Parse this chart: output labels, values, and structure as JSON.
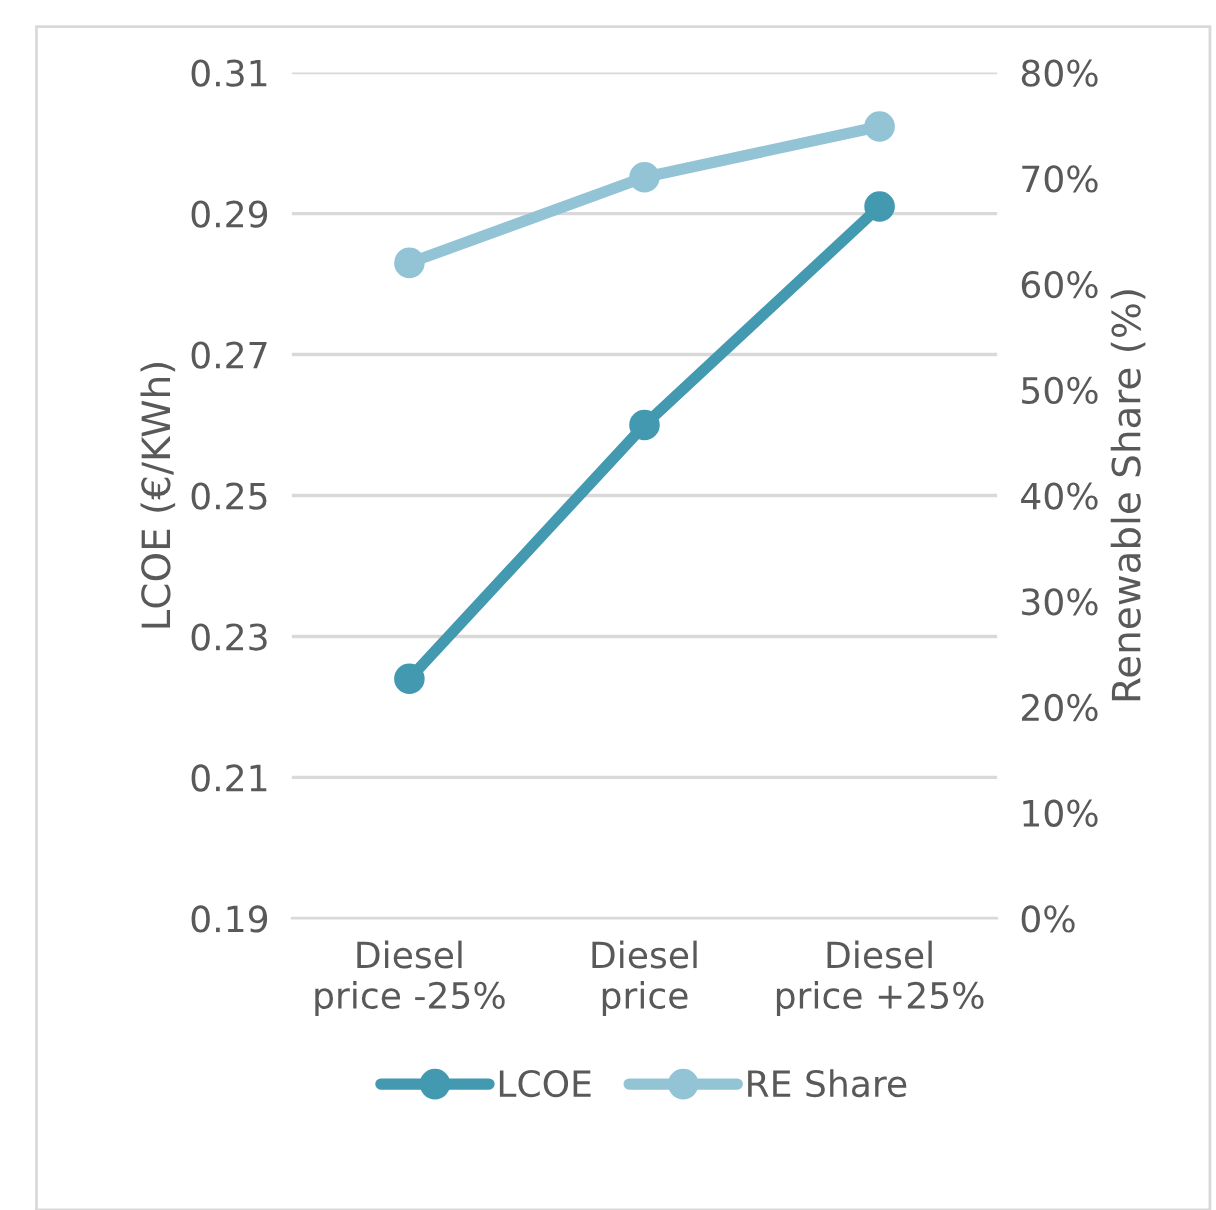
{
  "chart_data": {
    "type": "line",
    "categories": [
      "Diesel\nprice -25%",
      "Diesel\nprice",
      "Diesel\nprice +25%"
    ],
    "series": [
      {
        "name": "LCOE",
        "color": "#4299b0",
        "values": [
          0.224,
          0.26,
          0.291
        ]
      },
      {
        "name": "RE Share",
        "color": "#93c4d6",
        "values": [
          62.0,
          70.1,
          74.9
        ],
        "axis": "y2"
      }
    ],
    "ylabel": "LCOE (€/KWh)",
    "y2label": "Renewable Share (%)",
    "ylim": [
      0.19,
      0.31
    ],
    "yticks": [
      0.19,
      0.21,
      0.23,
      0.25,
      0.27,
      0.29,
      0.31
    ],
    "y2lim": [
      0,
      80
    ],
    "y2ticks": [
      {
        "value": 0,
        "label": "0%"
      },
      {
        "value": 10,
        "label": "10%"
      },
      {
        "value": 20,
        "label": "20%"
      },
      {
        "value": 30,
        "label": "30%"
      },
      {
        "value": 40,
        "label": "40%"
      },
      {
        "value": 50,
        "label": "50%"
      },
      {
        "value": 60,
        "label": "60%"
      },
      {
        "value": 70,
        "label": "70%"
      },
      {
        "value": 80,
        "label": "80%"
      }
    ],
    "grid": "y",
    "legend": "bottom",
    "marker": "circle",
    "line_style": "solid"
  }
}
